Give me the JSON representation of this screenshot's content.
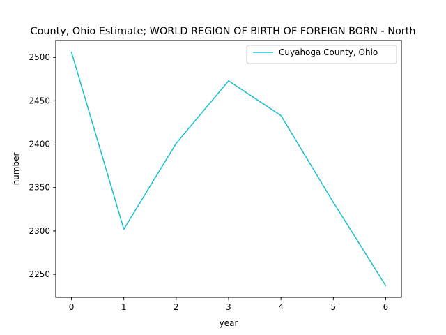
{
  "chart_data": {
    "type": "line",
    "title": "County, Ohio Estimate; WORLD REGION OF BIRTH OF FOREIGN BORN - North",
    "xlabel": "year",
    "ylabel": "number",
    "x": [
      0,
      1,
      2,
      3,
      4,
      5,
      6
    ],
    "xticks": [
      "0",
      "1",
      "2",
      "3",
      "4",
      "5",
      "6"
    ],
    "yticks": [
      2250,
      2300,
      2350,
      2400,
      2450,
      2500
    ],
    "ytick_labels": [
      "2250",
      "2300",
      "2350",
      "2400",
      "2450",
      "2500"
    ],
    "xlim": [
      -0.3,
      6.3
    ],
    "ylim": [
      2223.5,
      2519.5
    ],
    "grid": false,
    "legend_position": "upper right",
    "series": [
      {
        "name": "Cuyahoga County, Ohio",
        "color": "#17becf",
        "values": [
          2506,
          2302,
          2401,
          2473,
          2433,
          2333,
          2237
        ]
      }
    ]
  }
}
